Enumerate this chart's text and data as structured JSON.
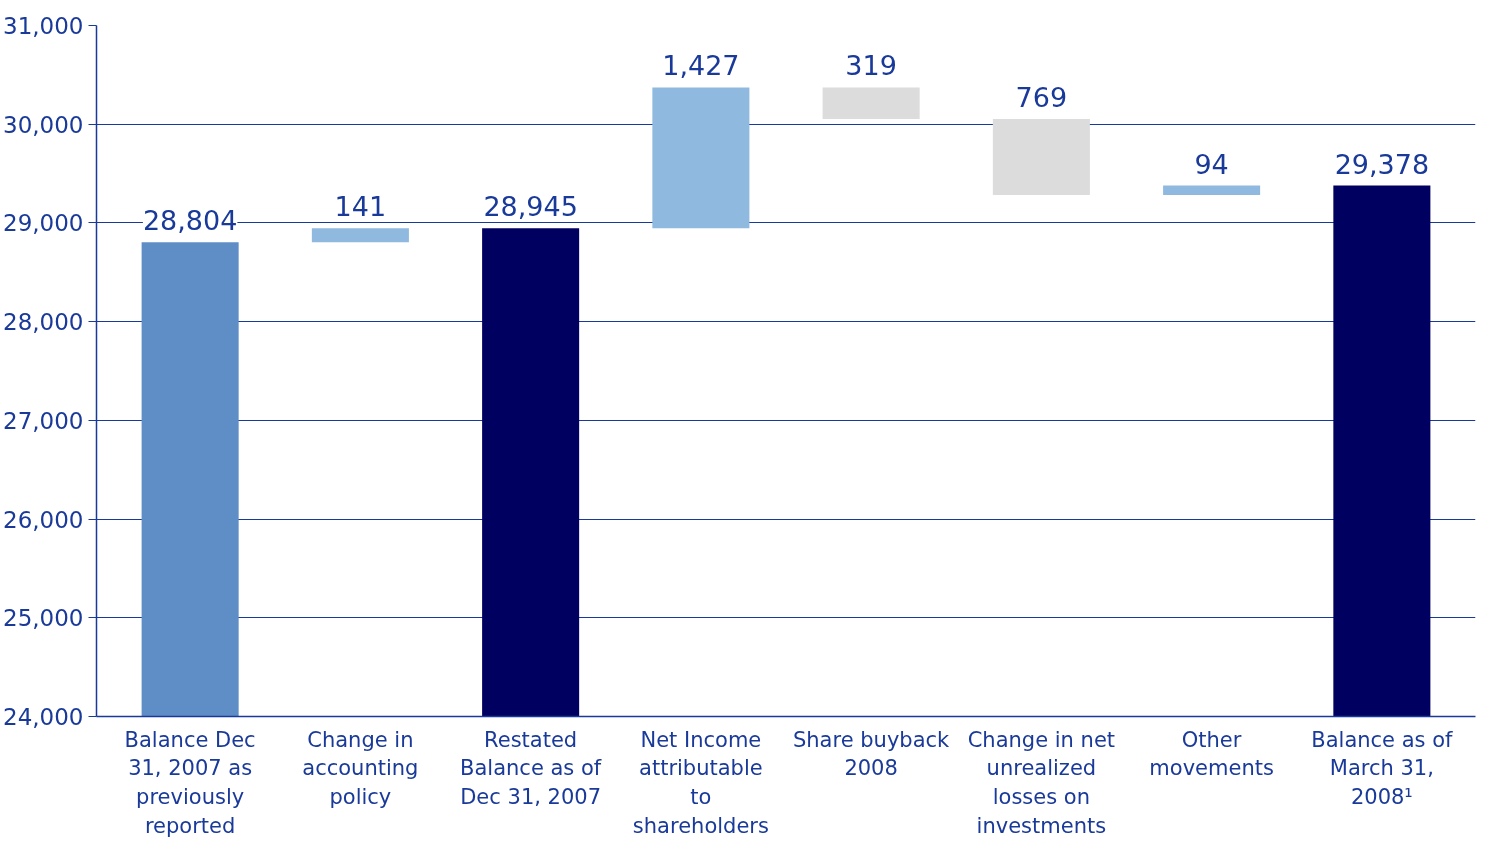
{
  "chart_data": {
    "type": "bar",
    "categories": [
      "Balance Dec 31, 2007 as previously reported",
      "Change in accounting policy",
      "Restated Balance as of Dec 31, 2007",
      "Net Income attributable to shareholders",
      "Share buyback 2008",
      "Change in net unrealized losses on investments",
      "Other movements",
      "Balance as of March 31, 2008¹"
    ],
    "values": [
      28804,
      141,
      28945,
      1427,
      319,
      769,
      94,
      29378
    ],
    "base": [
      null,
      28804,
      null,
      28945,
      30053,
      29284,
      29284,
      null
    ],
    "colors": [
      "#5f8ec7",
      "#8fb9de",
      "#000060",
      "#8fb9de",
      "#dcdcdc",
      "#dcdcdc",
      "#8fb9de",
      "#000060"
    ],
    "value_labels": [
      "28,804",
      "141",
      "28,945",
      "1,427",
      "319",
      "769",
      "94",
      "29,378"
    ],
    "ylim": [
      24000,
      31000
    ],
    "yticks": [
      {
        "value": 24000,
        "label": "24,000"
      },
      {
        "value": 25000,
        "label": "25,000"
      },
      {
        "value": 26000,
        "label": "26,000"
      },
      {
        "value": 27000,
        "label": "27,000"
      },
      {
        "value": 28000,
        "label": "28,000"
      },
      {
        "value": 29000,
        "label": "29,000"
      },
      {
        "value": 30000,
        "label": "30,000"
      },
      {
        "value": 31000,
        "label": "31,000"
      }
    ],
    "grid": "y"
  }
}
